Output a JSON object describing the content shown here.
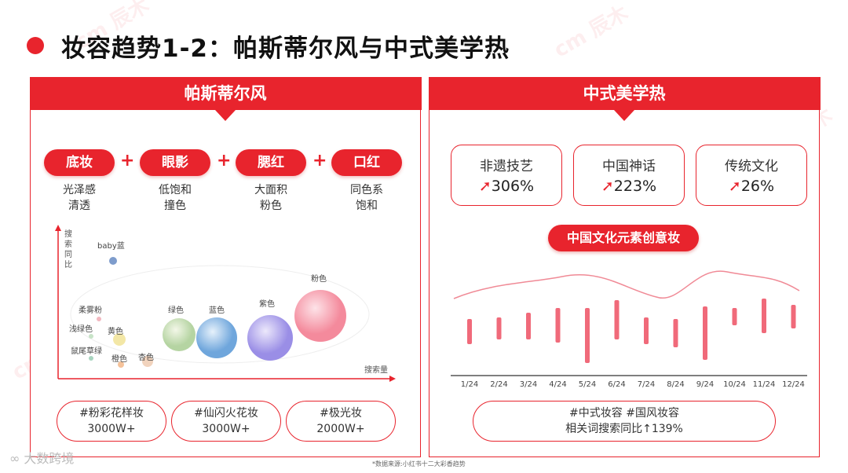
{
  "title": "妆容趋势1-2：帕斯蒂尔风与中式美学热",
  "watermark": "cm 辰木",
  "left_panel": {
    "header": "帕斯蒂尔风",
    "steps": [
      {
        "label": "底妆",
        "desc1": "光泽感",
        "desc2": "清透"
      },
      {
        "label": "眼影",
        "desc1": "低饱和",
        "desc2": "撞色"
      },
      {
        "label": "腮红",
        "desc1": "大面积",
        "desc2": "粉色"
      },
      {
        "label": "口红",
        "desc1": "同色系",
        "desc2": "饱和"
      }
    ],
    "plus": "+",
    "chart_data": {
      "type": "scatter",
      "ylabel": "搜索同比",
      "xlabel": "搜索量",
      "points": [
        {
          "name": "baby蓝",
          "color": "#7e9ccc"
        },
        {
          "name": "柔雾粉",
          "color": "#f2b8c0"
        },
        {
          "name": "浅绿色",
          "color": "#c7e3c7"
        },
        {
          "name": "黄色",
          "color": "#f3e7a6"
        },
        {
          "name": "鼠尾草绿",
          "color": "#a8d4bf"
        },
        {
          "name": "橙色",
          "color": "#f5c29a"
        },
        {
          "name": "杏色",
          "color": "#f1d3bd"
        },
        {
          "name": "绿色",
          "color": "#bfdcae"
        },
        {
          "name": "蓝色",
          "color": "#7fb0e0"
        },
        {
          "name": "紫色",
          "color": "#a69ae8"
        },
        {
          "name": "粉色",
          "color": "#f48a9c"
        }
      ]
    },
    "tags": [
      {
        "name": "#粉彩花样妆",
        "value": "3000W+"
      },
      {
        "name": "#仙闪火花妆",
        "value": "3000W+"
      },
      {
        "name": "#极光妆",
        "value": "2000W+"
      }
    ]
  },
  "right_panel": {
    "header": "中式美学热",
    "stats": [
      {
        "label": "非遗技艺",
        "value": "306%"
      },
      {
        "label": "中国神话",
        "value": "223%"
      },
      {
        "label": "传统文化",
        "value": "26%"
      }
    ],
    "creative_label": "中国文化元素创意妆",
    "chart_data": {
      "type": "bar",
      "categories": [
        "1/24",
        "2/24",
        "3/24",
        "4/24",
        "5/24",
        "6/24",
        "7/24",
        "8/24",
        "9/24",
        "10/24",
        "11/24",
        "12/24"
      ],
      "trend_color": "#f08a96",
      "bar_color": "#f06a7a"
    },
    "bottom": {
      "line1": "#中式妆容 #国风妆容",
      "line2": "相关词搜索同比↑139%"
    }
  },
  "footnote": "*数据来源:小红书十二大彩香趋势",
  "brand": "大数跨境"
}
